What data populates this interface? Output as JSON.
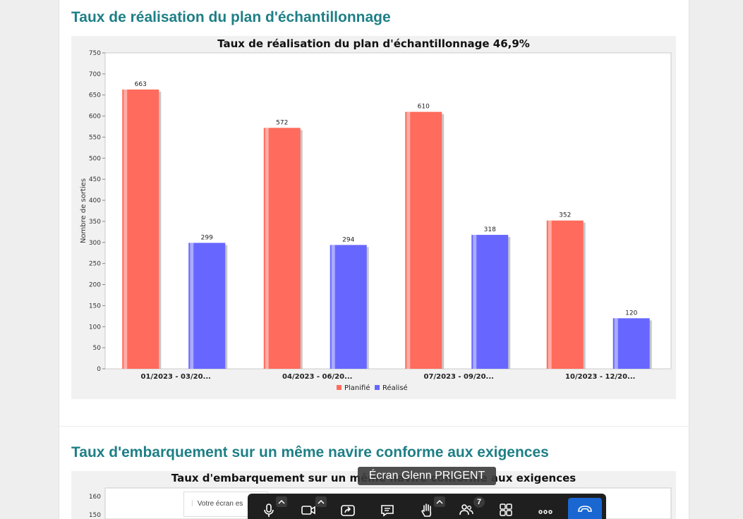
{
  "colors": {
    "teal_heading": "#1e7f86",
    "planifie": "#ff6b5c",
    "realise": "#6767ff",
    "toolbar_bg": "#1f1f1f",
    "hangup": "#1a67d2"
  },
  "section1": {
    "heading": "Taux de réalisation du plan d'échantillonnage"
  },
  "section2": {
    "heading": "Taux d'embarquement sur un même navire conforme aux exigences",
    "chart_title": "Taux d'embarquement sur un même navire conforme aux exigences",
    "y_ticks": [
      "160",
      "150"
    ]
  },
  "chart_data": [
    {
      "type": "bar",
      "title": "Taux de réalisation du plan d'échantillonnage 46,9%",
      "ylabel": "Nombre de sorties",
      "xlabel": "",
      "categories": [
        "01/2023 - 03/20...",
        "04/2023 - 06/20...",
        "07/2023 - 09/20...",
        "10/2023 - 12/20..."
      ],
      "series": [
        {
          "name": "Planifié",
          "color": "#ff6b5c",
          "values": [
            663,
            572,
            610,
            352
          ]
        },
        {
          "name": "Réalisé",
          "color": "#6767ff",
          "values": [
            299,
            294,
            318,
            120
          ]
        }
      ],
      "ylim": [
        0,
        750
      ],
      "yticks": [
        0,
        50,
        100,
        150,
        200,
        250,
        300,
        350,
        400,
        450,
        500,
        550,
        600,
        650,
        700,
        750
      ],
      "grid": false,
      "legend": "bottom-center"
    }
  ],
  "overlay": {
    "tooltip": "Écran Glenn PRIGENT",
    "share_banner": "Votre écran es",
    "participants_count": "7"
  },
  "toolbar": {
    "icons": [
      "microphone-icon",
      "camera-icon",
      "share-screen-icon",
      "chat-icon",
      "raise-hand-icon",
      "participants-icon",
      "apps-grid-icon",
      "more-icon",
      "hang-up-icon"
    ]
  }
}
